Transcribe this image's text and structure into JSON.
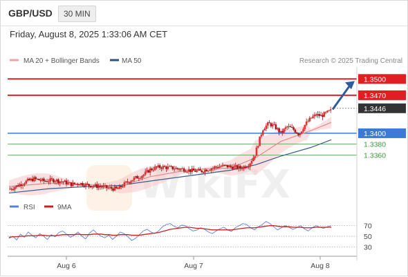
{
  "header": {
    "symbol": "GBP/USD",
    "timeframe": "30 MIN"
  },
  "datetime": "Friday, August 8, 2025 1:33:06 AM CET",
  "legend": {
    "ma_bb": "MA 20 + Bollinger Bands",
    "ma50": "MA 50",
    "credit": "Research © 2025 Trading Central"
  },
  "rsi_legend": {
    "rsi": "RSI",
    "ma": "9MA"
  },
  "watermark": "WikiFX",
  "colors": {
    "resistance": "#e02020",
    "support": "#3a7bd5",
    "support_minor": "#3a9a3a",
    "candle_up": "#e03030",
    "candle_down": "#a01818",
    "bollinger": "#f6c6c6",
    "ma20": "#e38a8a",
    "ma50": "#3a5a8a",
    "rsi": "#5a7fd8",
    "rsi_ma": "#c81e1e",
    "target_arrow": "#2d5aa0",
    "current_price": "#333333"
  },
  "chart_data": [
    {
      "type": "candlestick",
      "title": "GBP/USD 30 MIN",
      "x_ticks": [
        "Aug 6",
        "Aug 7",
        "Aug 8"
      ],
      "y_range": [
        1.3288,
        1.3522
      ],
      "ohlc_note": "approximate closing path read from the chart",
      "close_path": [
        [
          0,
          1.3297
        ],
        [
          4,
          1.33
        ],
        [
          10,
          1.3305
        ],
        [
          18,
          1.3312
        ],
        [
          25,
          1.3316
        ],
        [
          35,
          1.3312
        ],
        [
          45,
          1.3314
        ],
        [
          55,
          1.331
        ],
        [
          62,
          1.3306
        ],
        [
          70,
          1.3308
        ],
        [
          80,
          1.3304
        ],
        [
          90,
          1.3302
        ],
        [
          100,
          1.3299
        ],
        [
          108,
          1.3297
        ],
        [
          118,
          1.3311
        ],
        [
          126,
          1.3318
        ],
        [
          134,
          1.3324
        ],
        [
          140,
          1.3333
        ],
        [
          146,
          1.3337
        ],
        [
          152,
          1.3338
        ],
        [
          162,
          1.3336
        ],
        [
          172,
          1.3334
        ],
        [
          182,
          1.3331
        ],
        [
          190,
          1.333
        ],
        [
          198,
          1.3334
        ],
        [
          206,
          1.3338
        ],
        [
          214,
          1.334
        ],
        [
          222,
          1.3338
        ],
        [
          230,
          1.3336
        ],
        [
          238,
          1.3342
        ],
        [
          244,
          1.336
        ],
        [
          252,
          1.3408
        ],
        [
          258,
          1.3418
        ],
        [
          264,
          1.3412
        ],
        [
          270,
          1.34
        ],
        [
          276,
          1.3412
        ],
        [
          282,
          1.3408
        ],
        [
          288,
          1.3398
        ],
        [
          294,
          1.3416
        ],
        [
          300,
          1.3428
        ],
        [
          305,
          1.3434
        ],
        [
          310,
          1.3432
        ],
        [
          316,
          1.3438
        ],
        [
          320,
          1.3442
        ]
      ],
      "ma20": [
        [
          0,
          1.3302
        ],
        [
          40,
          1.3308
        ],
        [
          80,
          1.3305
        ],
        [
          110,
          1.3302
        ],
        [
          140,
          1.332
        ],
        [
          180,
          1.3333
        ],
        [
          220,
          1.3336
        ],
        [
          245,
          1.3355
        ],
        [
          270,
          1.3385
        ],
        [
          300,
          1.3405
        ],
        [
          320,
          1.342
        ]
      ],
      "ma50": [
        [
          0,
          1.329
        ],
        [
          40,
          1.3298
        ],
        [
          80,
          1.3302
        ],
        [
          110,
          1.3304
        ],
        [
          140,
          1.3312
        ],
        [
          180,
          1.3322
        ],
        [
          220,
          1.3332
        ],
        [
          245,
          1.3342
        ],
        [
          270,
          1.3358
        ],
        [
          300,
          1.3374
        ],
        [
          320,
          1.3388
        ]
      ],
      "levels": [
        {
          "label": "1.3500",
          "value": 1.35,
          "kind": "resistance"
        },
        {
          "label": "1.3470",
          "value": 1.347,
          "kind": "resistance"
        },
        {
          "label": "1.3446",
          "value": 1.3446,
          "kind": "current"
        },
        {
          "label": "1.3400",
          "value": 1.34,
          "kind": "support"
        },
        {
          "label": "1.3380",
          "value": 1.338,
          "kind": "support-minor"
        },
        {
          "label": "1.3360",
          "value": 1.336,
          "kind": "support-minor"
        }
      ]
    },
    {
      "type": "line",
      "title": "RSI",
      "y_range": [
        20,
        80
      ],
      "y_ticks": [
        "70",
        "50",
        "30"
      ],
      "series": [
        {
          "name": "RSI",
          "values": [
            46,
            50,
            43,
            54,
            48,
            58,
            52,
            47,
            55,
            50,
            44,
            53,
            49,
            57,
            60,
            54,
            48,
            52,
            58,
            50,
            45,
            56,
            62,
            55,
            50,
            47,
            52,
            44,
            50,
            58,
            55,
            49,
            42,
            46,
            53,
            60,
            63,
            58,
            55,
            60,
            68,
            72,
            74,
            69,
            66,
            71,
            70,
            64,
            60,
            62,
            66,
            63,
            58,
            55,
            60,
            64,
            67,
            62,
            59,
            66,
            70,
            74,
            72,
            66,
            62,
            68,
            72,
            78,
            74,
            68,
            62,
            66,
            70,
            67,
            63,
            66,
            70,
            64,
            60,
            66,
            70,
            67,
            65,
            68,
            70
          ]
        },
        {
          "name": "9MA",
          "values": [
            48,
            49,
            49,
            50,
            50,
            51,
            51,
            51,
            52,
            52,
            51,
            51,
            51,
            52,
            53,
            53,
            53,
            53,
            54,
            53,
            53,
            53,
            54,
            54,
            54,
            53,
            53,
            52,
            52,
            53,
            53,
            53,
            52,
            52,
            52,
            53,
            54,
            55,
            56,
            57,
            59,
            61,
            63,
            64,
            65,
            66,
            67,
            67,
            66,
            65,
            65,
            64,
            63,
            62,
            62,
            62,
            62,
            62,
            62,
            63,
            64,
            65,
            66,
            66,
            66,
            67,
            68,
            69,
            70,
            70,
            69,
            68,
            68,
            68,
            67,
            67,
            67,
            66,
            66,
            66,
            67,
            67,
            67,
            67,
            67
          ]
        }
      ]
    }
  ]
}
